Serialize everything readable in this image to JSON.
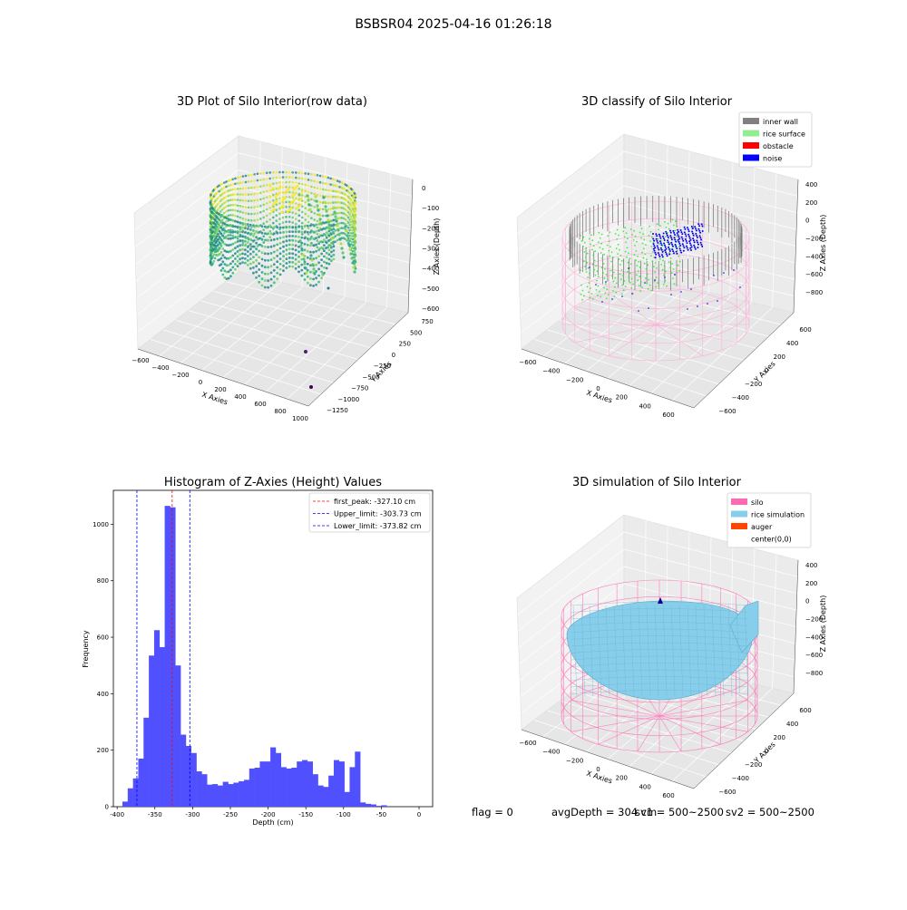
{
  "suptitle": "BSBSR04 2025-04-16 01:26:18",
  "panels": {
    "raw3d": {
      "title": "3D Plot of Silo Interior(row data)",
      "xlabel": "X Axies",
      "ylabel": "Y Axies",
      "zlabel": "Z Axies (Depth)",
      "xticks": [
        "−600",
        "−400",
        "−200",
        "0",
        "200",
        "400",
        "600",
        "800",
        "1000"
      ],
      "yticks": [
        "750",
        "500",
        "250",
        "0",
        "−250",
        "−500",
        "−750",
        "−1000",
        "−1250"
      ],
      "zticks": [
        "0",
        "−100",
        "−200",
        "−300",
        "−400",
        "−500",
        "−600"
      ]
    },
    "classify3d": {
      "title": "3D classify of Silo Interior",
      "xlabel": "X Axies",
      "ylabel": "Y Axies",
      "zlabel": "Z Axies (Depth)",
      "xticks": [
        "−600",
        "−400",
        "−200",
        "0",
        "200",
        "400",
        "600"
      ],
      "yticks": [
        "600",
        "400",
        "200",
        "0",
        "−200",
        "−400",
        "−600"
      ],
      "zticks": [
        "400",
        "200",
        "0",
        "−200",
        "−400",
        "−600",
        "−800"
      ],
      "legend": [
        {
          "label": "inner wall",
          "color": "#808080"
        },
        {
          "label": "rice surface",
          "color": "#90ee90"
        },
        {
          "label": "obstacle",
          "color": "#ff0000"
        },
        {
          "label": "noise",
          "color": "#0000ff"
        }
      ]
    },
    "simulation3d": {
      "title": "3D simulation of Silo Interior",
      "xlabel": "X Axies",
      "ylabel": "Y Axies",
      "zlabel": "Z Axies (Depth)",
      "xticks": [
        "−600",
        "−400",
        "−200",
        "0",
        "200",
        "400",
        "600"
      ],
      "yticks": [
        "600",
        "400",
        "200",
        "0",
        "−200",
        "−400",
        "−600"
      ],
      "zticks": [
        "400",
        "200",
        "0",
        "−200",
        "−400",
        "−600",
        "−800"
      ],
      "legend": [
        {
          "label": "silo",
          "color": "#ff69b4"
        },
        {
          "label": "rice simulation",
          "color": "#87ceeb"
        },
        {
          "label": "auger",
          "color": "#ff4500"
        },
        {
          "label": "center(0,0)",
          "color": ""
        }
      ]
    }
  },
  "chart_data": {
    "type": "bar",
    "title": "Histogram of Z-Axies (Height) Values",
    "xlabel": "Depth (cm)",
    "ylabel": "Frequency",
    "xlim": [
      -405,
      18
    ],
    "ylim": [
      0,
      1120
    ],
    "xticks": [
      -400,
      -350,
      -300,
      -250,
      -200,
      -150,
      -100,
      -50,
      0
    ],
    "yticks": [
      0,
      200,
      400,
      600,
      800,
      1000
    ],
    "bar_color": "#5050ff",
    "bin_start": -393,
    "bin_width": 7,
    "values": [
      18,
      65,
      100,
      170,
      315,
      535,
      625,
      565,
      1065,
      1060,
      500,
      255,
      215,
      190,
      125,
      115,
      78,
      80,
      75,
      88,
      80,
      85,
      90,
      95,
      135,
      138,
      160,
      160,
      210,
      190,
      140,
      135,
      138,
      160,
      165,
      160,
      115,
      75,
      70,
      110,
      165,
      160,
      52,
      140,
      195,
      15,
      10,
      8,
      3,
      5
    ],
    "lines": [
      {
        "label": "first_peak: -327.10 cm",
        "x": -327.1,
        "color": "#ff0000"
      },
      {
        "label": "Upper_limit: -303.73 cm",
        "x": -303.73,
        "color": "#0000ff"
      },
      {
        "label": "Lower_limit: -373.82 cm",
        "x": -373.82,
        "color": "#0000ff"
      }
    ],
    "legend_position": "top-right"
  },
  "footer": {
    "flag": "flag = 0",
    "avg": "avgDepth = 304 cm",
    "sv1": "sv1 = 500~2500",
    "sv2": "sv2 = 500~2500"
  }
}
